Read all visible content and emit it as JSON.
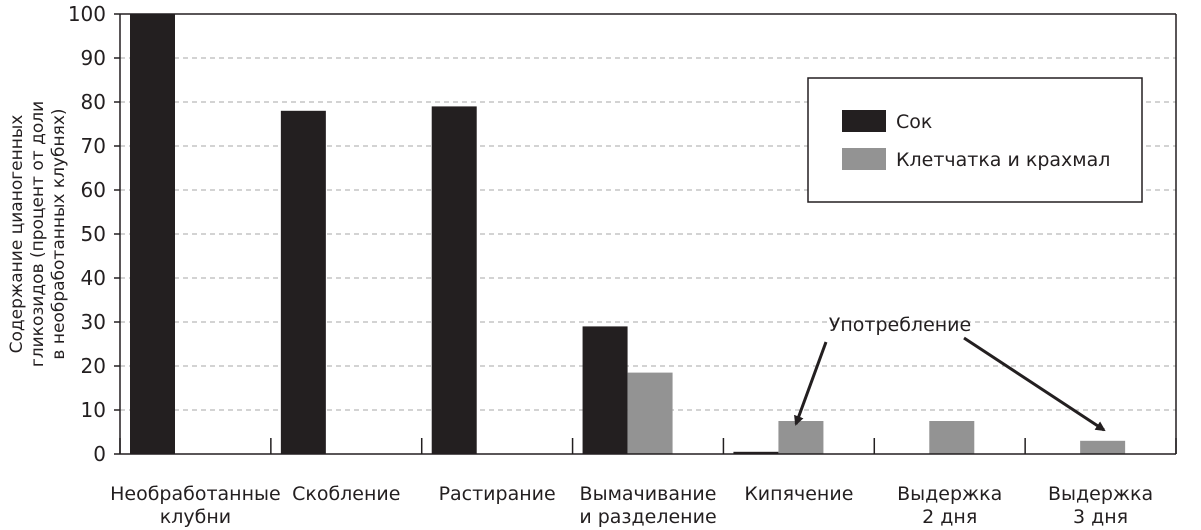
{
  "chart_data": {
    "type": "bar",
    "ylabel": [
      "Содержание цианогенных",
      "гликозидов (процент от доли",
      "в необработанных клубнях)"
    ],
    "yticks": [
      0,
      10,
      20,
      30,
      40,
      50,
      60,
      70,
      80,
      90,
      100
    ],
    "ylim": [
      0,
      100
    ],
    "grid": true,
    "legend_position": "top-right",
    "categories": [
      [
        "Необработанные",
        "клубни"
      ],
      [
        "Скобление"
      ],
      [
        "Растирание"
      ],
      [
        "Вымачивание",
        "и разделение"
      ],
      [
        "Кипячение"
      ],
      [
        "Выдержка",
        "2 дня"
      ],
      [
        "Выдержка",
        "3 дня"
      ]
    ],
    "series": [
      {
        "name": "Сок",
        "color": "#231f20",
        "values": [
          100,
          78,
          79,
          29,
          0.5,
          null,
          null
        ]
      },
      {
        "name": "Клетчатка и крахмал",
        "color": "#939393",
        "values": [
          null,
          null,
          null,
          18.5,
          7.5,
          7.5,
          3
        ]
      }
    ],
    "annotation": {
      "text": "Употребление",
      "targets": [
        "Кипячение",
        "Выдержка 3 дня"
      ]
    }
  }
}
